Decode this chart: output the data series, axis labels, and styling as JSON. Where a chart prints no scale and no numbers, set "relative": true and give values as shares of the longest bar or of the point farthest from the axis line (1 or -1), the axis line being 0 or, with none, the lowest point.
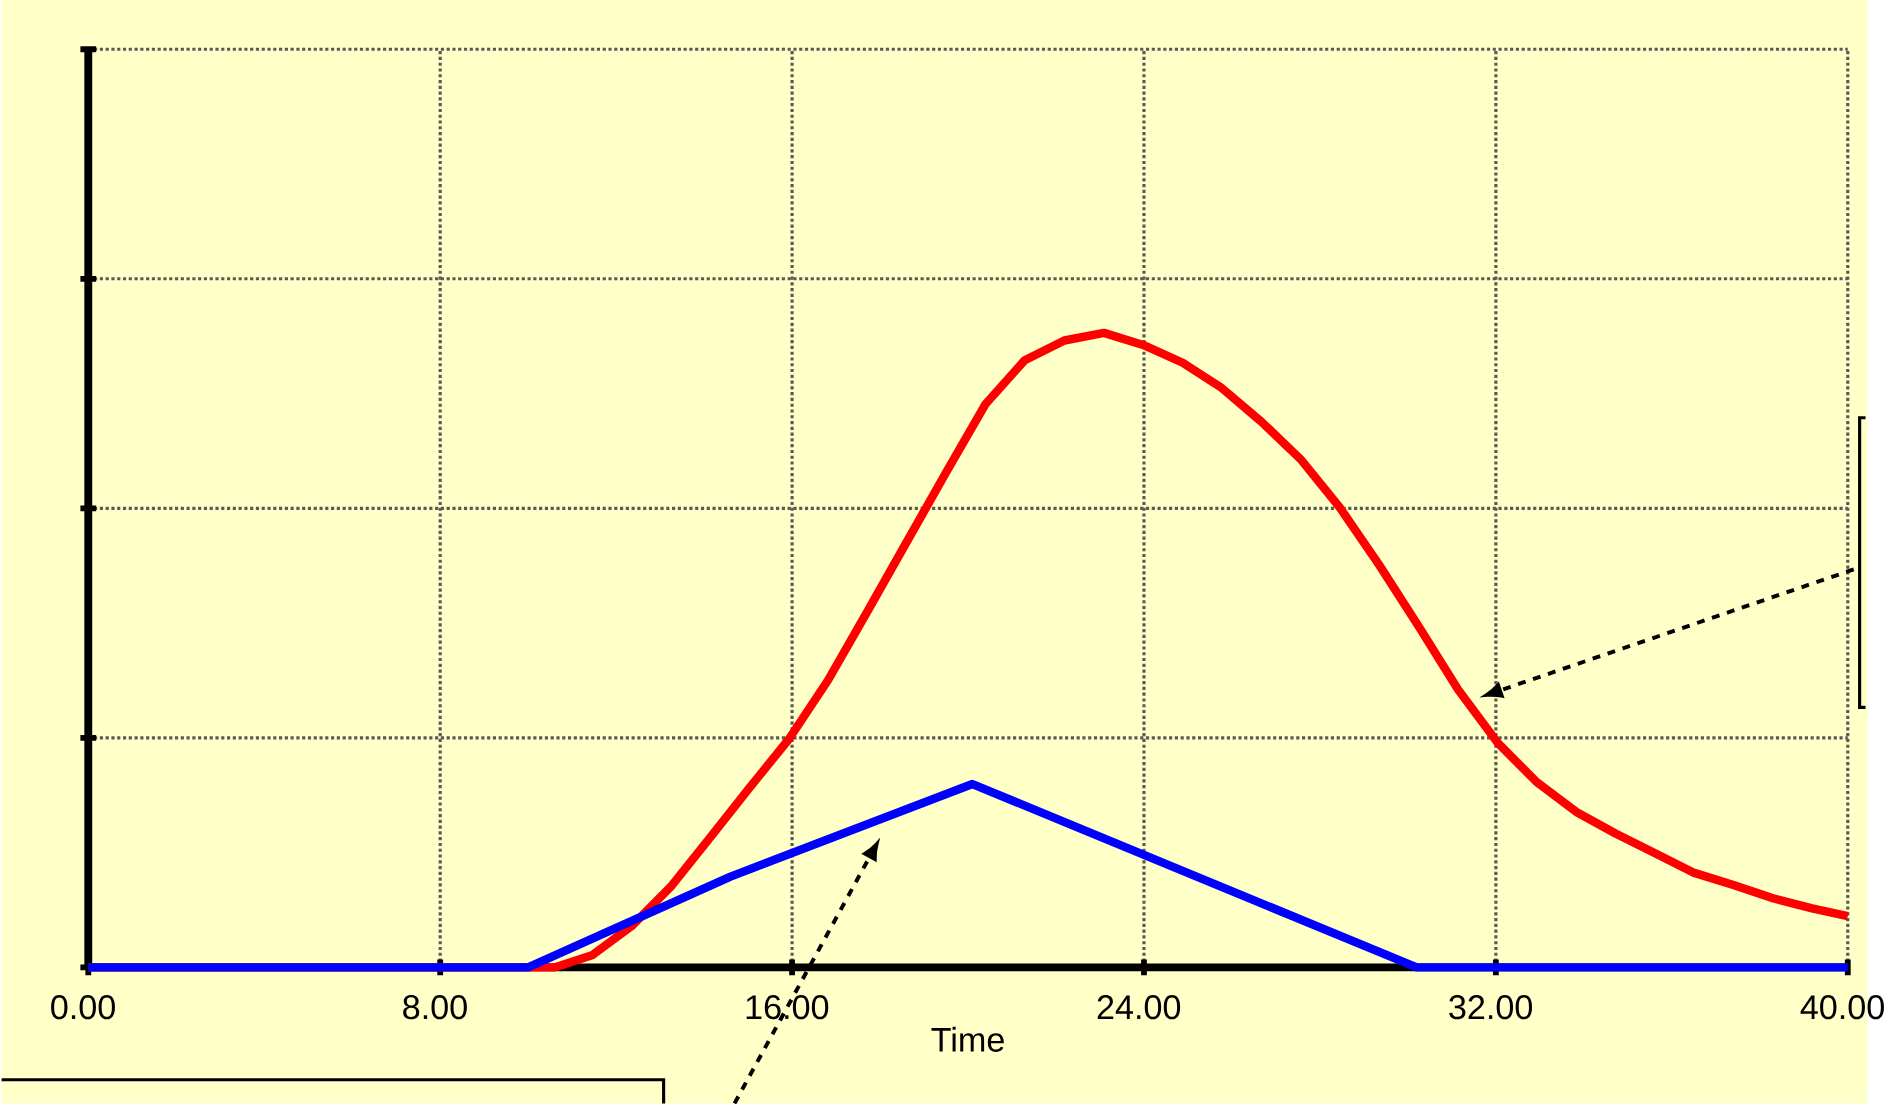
{
  "chart_data": {
    "type": "line",
    "relative": true,
    "xlabel": "Time",
    "xlim": [
      0,
      40
    ],
    "xticks": [
      {
        "value": 0,
        "label": "0.00"
      },
      {
        "value": 8,
        "label": "8.00"
      },
      {
        "value": 16,
        "label": "16.00"
      },
      {
        "value": 24,
        "label": "24.00"
      },
      {
        "value": 32,
        "label": "32.00"
      },
      {
        "value": 40,
        "label": "40.00"
      }
    ],
    "grid": true,
    "marker": "none",
    "line_style": "solid",
    "series": [
      {
        "color": "#ff0000",
        "x": [
          0,
          10.6,
          11.45,
          12.35,
          13.24,
          14.14,
          15.03,
          15.93,
          16.82,
          17.72,
          18.61,
          19.5,
          20.4,
          21.29,
          22.19,
          23.09,
          23.98,
          24.88,
          25.77,
          26.67,
          27.56,
          28.46,
          29.35,
          30.25,
          31.14,
          32.04,
          32.93,
          33.83,
          34.72,
          35.62,
          36.51,
          37.4,
          38.3,
          39.19,
          40
        ],
        "values": [
          0,
          0,
          0.019,
          0.065,
          0.127,
          0.205,
          0.283,
          0.36,
          0.453,
          0.562,
          0.671,
          0.78,
          0.888,
          0.957,
          0.988,
          1.0,
          0.981,
          0.953,
          0.913,
          0.86,
          0.801,
          0.724,
          0.634,
          0.537,
          0.438,
          0.354,
          0.292,
          0.245,
          0.211,
          0.18,
          0.149,
          0.13,
          0.109,
          0.093,
          0.081
        ]
      },
      {
        "color": "#0000ff",
        "x": [
          0,
          10.0,
          14.6,
          20.1,
          30.2,
          40
        ],
        "values": [
          0,
          0,
          0.143,
          0.289,
          0,
          0
        ]
      }
    ]
  }
}
